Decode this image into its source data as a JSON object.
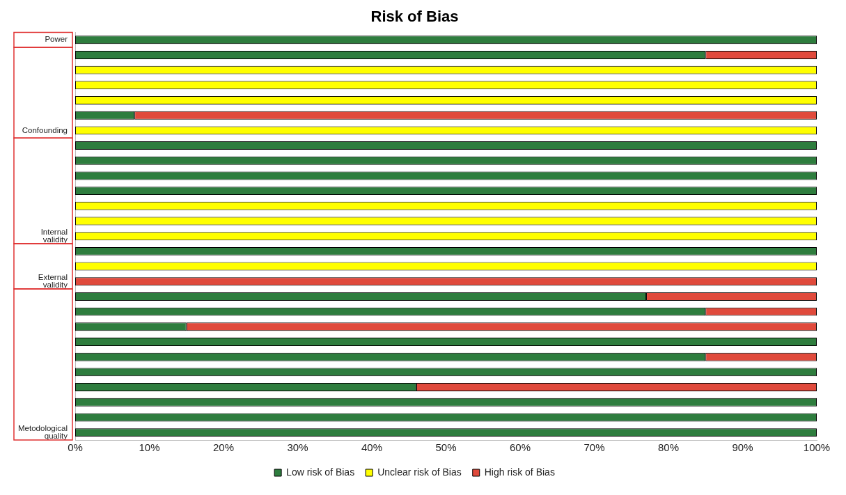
{
  "chart_data": {
    "type": "bar",
    "title": "Risk of Bias",
    "orientation": "horizontal",
    "stacked": true,
    "categories": [
      "Power",
      null,
      null,
      null,
      null,
      null,
      "Confounding",
      null,
      null,
      null,
      null,
      null,
      null,
      "Internal validity",
      null,
      null,
      "External validity",
      null,
      null,
      null,
      null,
      null,
      null,
      null,
      null,
      null,
      "Metodological quality"
    ],
    "series": [
      {
        "name": "Low risk of Bias",
        "color": "#2e7d3e",
        "values": [
          100,
          85,
          null,
          null,
          null,
          8,
          null,
          100,
          100,
          100,
          100,
          null,
          null,
          null,
          100,
          null,
          null,
          77,
          85,
          15,
          100,
          85,
          100,
          46,
          100,
          100,
          100
        ]
      },
      {
        "name": "Unclear risk of Bias",
        "color": "#ffff00",
        "values": [
          null,
          null,
          100,
          100,
          100,
          null,
          100,
          null,
          null,
          null,
          null,
          100,
          100,
          100,
          null,
          100,
          null,
          null,
          null,
          null,
          null,
          null,
          null,
          null,
          null,
          null,
          null
        ]
      },
      {
        "name": "High risk of Bias",
        "color": "#e04a3c",
        "values": [
          null,
          15,
          null,
          null,
          null,
          92,
          null,
          null,
          null,
          null,
          null,
          null,
          null,
          null,
          null,
          null,
          100,
          23,
          15,
          85,
          null,
          15,
          null,
          54,
          null,
          null,
          null
        ]
      }
    ],
    "xlim": [
      0,
      100
    ],
    "xticks": [
      {
        "value": 0,
        "label": "0%"
      },
      {
        "value": 10,
        "label": "10%"
      },
      {
        "value": 20,
        "label": "20%"
      },
      {
        "value": 30,
        "label": "30%"
      },
      {
        "value": 40,
        "label": "40%"
      },
      {
        "value": 50,
        "label": "50%"
      },
      {
        "value": 60,
        "label": "60%"
      },
      {
        "value": 70,
        "label": "70%"
      },
      {
        "value": 80,
        "label": "80%"
      },
      {
        "value": 90,
        "label": "90%"
      },
      {
        "value": 100,
        "label": "100%"
      }
    ],
    "grid": false,
    "legend": "bottom"
  }
}
